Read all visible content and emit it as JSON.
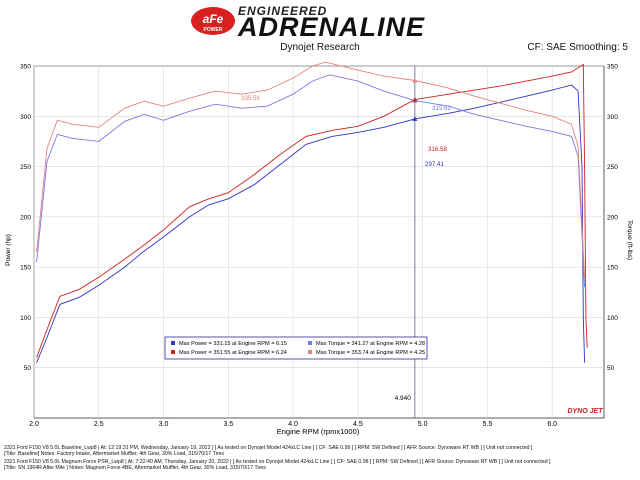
{
  "brand": {
    "badge_text": "aFe",
    "badge_sub": "POWER",
    "title_top": "ENGINEERED",
    "title_main": "ADRENALINE"
  },
  "header": {
    "center": "Dynojet Research",
    "right": "CF: SAE Smoothing: 5"
  },
  "colors": {
    "blue": "#3232c8",
    "red": "#d02020",
    "light_blue": "#7a7ae6",
    "light_red": "#e88080",
    "marker_line": "#5a5a9a",
    "legend_box_border": "#2a2a9a"
  },
  "chart_data": {
    "type": "line",
    "xlabel": "Engine RPM (rpmx1000)",
    "ylabel_left": "Power (hp)",
    "ylabel_right": "Torque (ft-lbs)",
    "xlim": [
      2.0,
      6.4
    ],
    "ylim": [
      0,
      350
    ],
    "x_ticks": [
      "2.0",
      "2.5",
      "3.0",
      "3.5",
      "4.0",
      "4.5",
      "5.0",
      "5.5",
      "6.0"
    ],
    "y_ticks": [
      "50",
      "100",
      "150",
      "200",
      "250",
      "300",
      "350"
    ],
    "series": [
      {
        "name": "Max Power = 331.15 at Engine RPM = 6.15",
        "kind": "power",
        "color": "#3232c8",
        "points": [
          [
            2.02,
            55
          ],
          [
            2.1,
            80
          ],
          [
            2.2,
            113
          ],
          [
            2.35,
            120
          ],
          [
            2.5,
            132
          ],
          [
            2.7,
            150
          ],
          [
            2.85,
            166
          ],
          [
            3.0,
            180
          ],
          [
            3.2,
            200
          ],
          [
            3.35,
            212
          ],
          [
            3.5,
            218
          ],
          [
            3.7,
            232
          ],
          [
            3.9,
            252
          ],
          [
            4.1,
            272
          ],
          [
            4.3,
            280
          ],
          [
            4.5,
            284
          ],
          [
            4.7,
            289
          ],
          [
            4.94,
            297.41
          ],
          [
            5.2,
            303
          ],
          [
            5.4,
            308
          ],
          [
            5.6,
            314
          ],
          [
            5.8,
            320
          ],
          [
            6.0,
            326
          ],
          [
            6.15,
            331.15
          ],
          [
            6.2,
            325
          ],
          [
            6.23,
            250
          ],
          [
            6.24,
            100
          ],
          [
            6.25,
            55
          ]
        ]
      },
      {
        "name": "Max Power = 351.55 at Engine RPM = 6.24",
        "kind": "power",
        "color": "#d02020",
        "points": [
          [
            2.02,
            60
          ],
          [
            2.1,
            88
          ],
          [
            2.2,
            121
          ],
          [
            2.35,
            128
          ],
          [
            2.5,
            140
          ],
          [
            2.7,
            158
          ],
          [
            2.85,
            172
          ],
          [
            3.0,
            187
          ],
          [
            3.2,
            210
          ],
          [
            3.35,
            218
          ],
          [
            3.5,
            224
          ],
          [
            3.7,
            242
          ],
          [
            3.9,
            262
          ],
          [
            4.1,
            280
          ],
          [
            4.3,
            286
          ],
          [
            4.5,
            290
          ],
          [
            4.7,
            300
          ],
          [
            4.94,
            316.58
          ],
          [
            5.2,
            322
          ],
          [
            5.4,
            326
          ],
          [
            5.6,
            330
          ],
          [
            5.8,
            335
          ],
          [
            6.0,
            340
          ],
          [
            6.15,
            344
          ],
          [
            6.24,
            351.55
          ],
          [
            6.25,
            250
          ],
          [
            6.26,
            100
          ],
          [
            6.27,
            70
          ]
        ]
      },
      {
        "name": "Max Torque = 341.27 at Engine RPM = 4.28",
        "kind": "torque",
        "color": "#7a7ae6",
        "points": [
          [
            2.02,
            155
          ],
          [
            2.1,
            255
          ],
          [
            2.18,
            282
          ],
          [
            2.3,
            278
          ],
          [
            2.5,
            275
          ],
          [
            2.7,
            295
          ],
          [
            2.85,
            302
          ],
          [
            3.0,
            296
          ],
          [
            3.2,
            305
          ],
          [
            3.4,
            312
          ],
          [
            3.6,
            308
          ],
          [
            3.8,
            310
          ],
          [
            4.0,
            322
          ],
          [
            4.15,
            335
          ],
          [
            4.28,
            341.27
          ],
          [
            4.5,
            335
          ],
          [
            4.7,
            325
          ],
          [
            4.94,
            315.62
          ],
          [
            5.2,
            310
          ],
          [
            5.4,
            302
          ],
          [
            5.6,
            296
          ],
          [
            5.8,
            290
          ],
          [
            6.0,
            285
          ],
          [
            6.15,
            280
          ],
          [
            6.2,
            260
          ],
          [
            6.25,
            130
          ]
        ]
      },
      {
        "name": "Max Torque = 353.74 at Engine RPM = 4.25",
        "kind": "torque",
        "color": "#e88080",
        "points": [
          [
            2.02,
            165
          ],
          [
            2.1,
            268
          ],
          [
            2.18,
            296
          ],
          [
            2.3,
            292
          ],
          [
            2.5,
            289
          ],
          [
            2.7,
            308
          ],
          [
            2.85,
            315
          ],
          [
            3.0,
            310
          ],
          [
            3.2,
            318
          ],
          [
            3.4,
            325
          ],
          [
            3.6,
            322
          ],
          [
            3.8,
            326
          ],
          [
            4.0,
            338
          ],
          [
            4.15,
            350
          ],
          [
            4.25,
            353.74
          ],
          [
            4.5,
            346
          ],
          [
            4.7,
            340
          ],
          [
            4.94,
            335.56
          ],
          [
            5.2,
            328
          ],
          [
            5.4,
            320
          ],
          [
            5.6,
            313
          ],
          [
            5.8,
            306
          ],
          [
            6.0,
            300
          ],
          [
            6.15,
            292
          ],
          [
            6.2,
            270
          ],
          [
            6.25,
            140
          ]
        ]
      }
    ],
    "cursor": {
      "x_value": 4.94,
      "x_label": "4.940",
      "value_labels": [
        "335.56",
        "315.62",
        "316.58",
        "297.41"
      ]
    },
    "legend": [
      "Max Power = 331.15 at Engine RPM = 6.15",
      "Max Power = 351.55 at Engine RPM = 6.24",
      "Max Torque = 341.27 at Engine RPM = 4.28",
      "Max Torque = 353.74 at Engine RPM = 4.25"
    ],
    "watermark": "DYNO JET"
  },
  "footer": {
    "lines": [
      "2321 Ford F150 V8 5.0L Baseline_Lwp8 | At: 12:19:31 PM, Wednesday, January 19, 2022 | [ As tested on Dynojet Model 424xLC Line ] [ CF: SAE 0.99 ] [ RPM: SW Defined ] [ AFR Source: Dynoware RT WB ] [ Unit not connected ]",
      "[Title: Baseline] Notes: Factory Intake, Aftermarket Muffler, 4th Gear, 30% Load, 315/70/17 Tires",
      "2321 Ford F150 V8 5.0L Magnum Force PSR_Lwp8 | At: 7:22:40 AM, Thursday, January 20, 2022 | [ As tested on Dynojet Model 424xLC Line ] [ CF: SAE 0.98 ] [ RPM: SW Defined ] [ AFR Source: Dynoware RT WB ] [ Unit not connected ]",
      "[Title: SN 1964R After Mile ] Notes: Magnum Force 4BE, Aftermarket Muffler, 4th Gear, 30% Load, 315/70/17 Tires"
    ]
  }
}
